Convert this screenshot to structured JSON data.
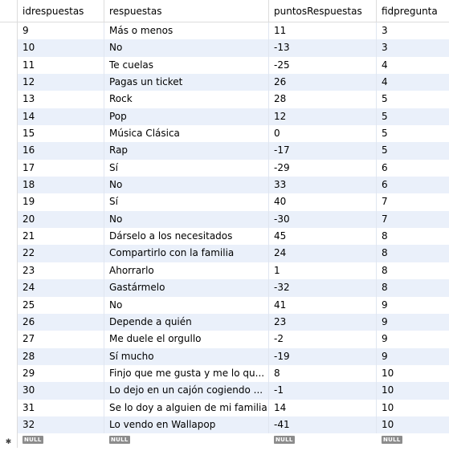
{
  "columns": [
    "idrespuestas",
    "respuestas",
    "puntosRespuestas",
    "fidpregunta"
  ],
  "rows": [
    [
      "9",
      "Más o menos",
      "11",
      "3"
    ],
    [
      "10",
      "No",
      "-13",
      "3"
    ],
    [
      "11",
      "Te cuelas",
      "-25",
      "4"
    ],
    [
      "12",
      "Pagas un ticket",
      "26",
      "4"
    ],
    [
      "13",
      "Rock",
      "28",
      "5"
    ],
    [
      "14",
      "Pop",
      "12",
      "5"
    ],
    [
      "15",
      "Música Clásica",
      "0",
      "5"
    ],
    [
      "16",
      "Rap",
      "-17",
      "5"
    ],
    [
      "17",
      "Sí",
      "-29",
      "6"
    ],
    [
      "18",
      "No",
      "33",
      "6"
    ],
    [
      "19",
      "Sí",
      "40",
      "7"
    ],
    [
      "20",
      "No",
      "-30",
      "7"
    ],
    [
      "21",
      "Dárselo a los necesitados",
      "45",
      "8"
    ],
    [
      "22",
      "Compartirlo con la familia",
      "24",
      "8"
    ],
    [
      "23",
      "Ahorrarlo",
      "1",
      "8"
    ],
    [
      "24",
      "Gastármelo",
      "-32",
      "8"
    ],
    [
      "25",
      "No",
      "41",
      "9"
    ],
    [
      "26",
      "Depende a quién",
      "23",
      "9"
    ],
    [
      "27",
      "Me duele el orgullo",
      "-2",
      "9"
    ],
    [
      "28",
      "Sí mucho",
      "-19",
      "9"
    ],
    [
      "29",
      "Finjo que me gusta y me lo qu...",
      "8",
      "10"
    ],
    [
      "30",
      "Lo dejo en un cajón cogiendo ...",
      "-1",
      "10"
    ],
    [
      "31",
      "Se lo doy a alguien de mi familia",
      "14",
      "10"
    ],
    [
      "32",
      "Lo vendo en Wallapop",
      "-41",
      "10"
    ]
  ],
  "new_row": {
    "marker": "✱",
    "null_label": "NULL"
  },
  "colors": {
    "alt_row": "#eaf0fa",
    "null_badge": "#8c8c8c"
  }
}
